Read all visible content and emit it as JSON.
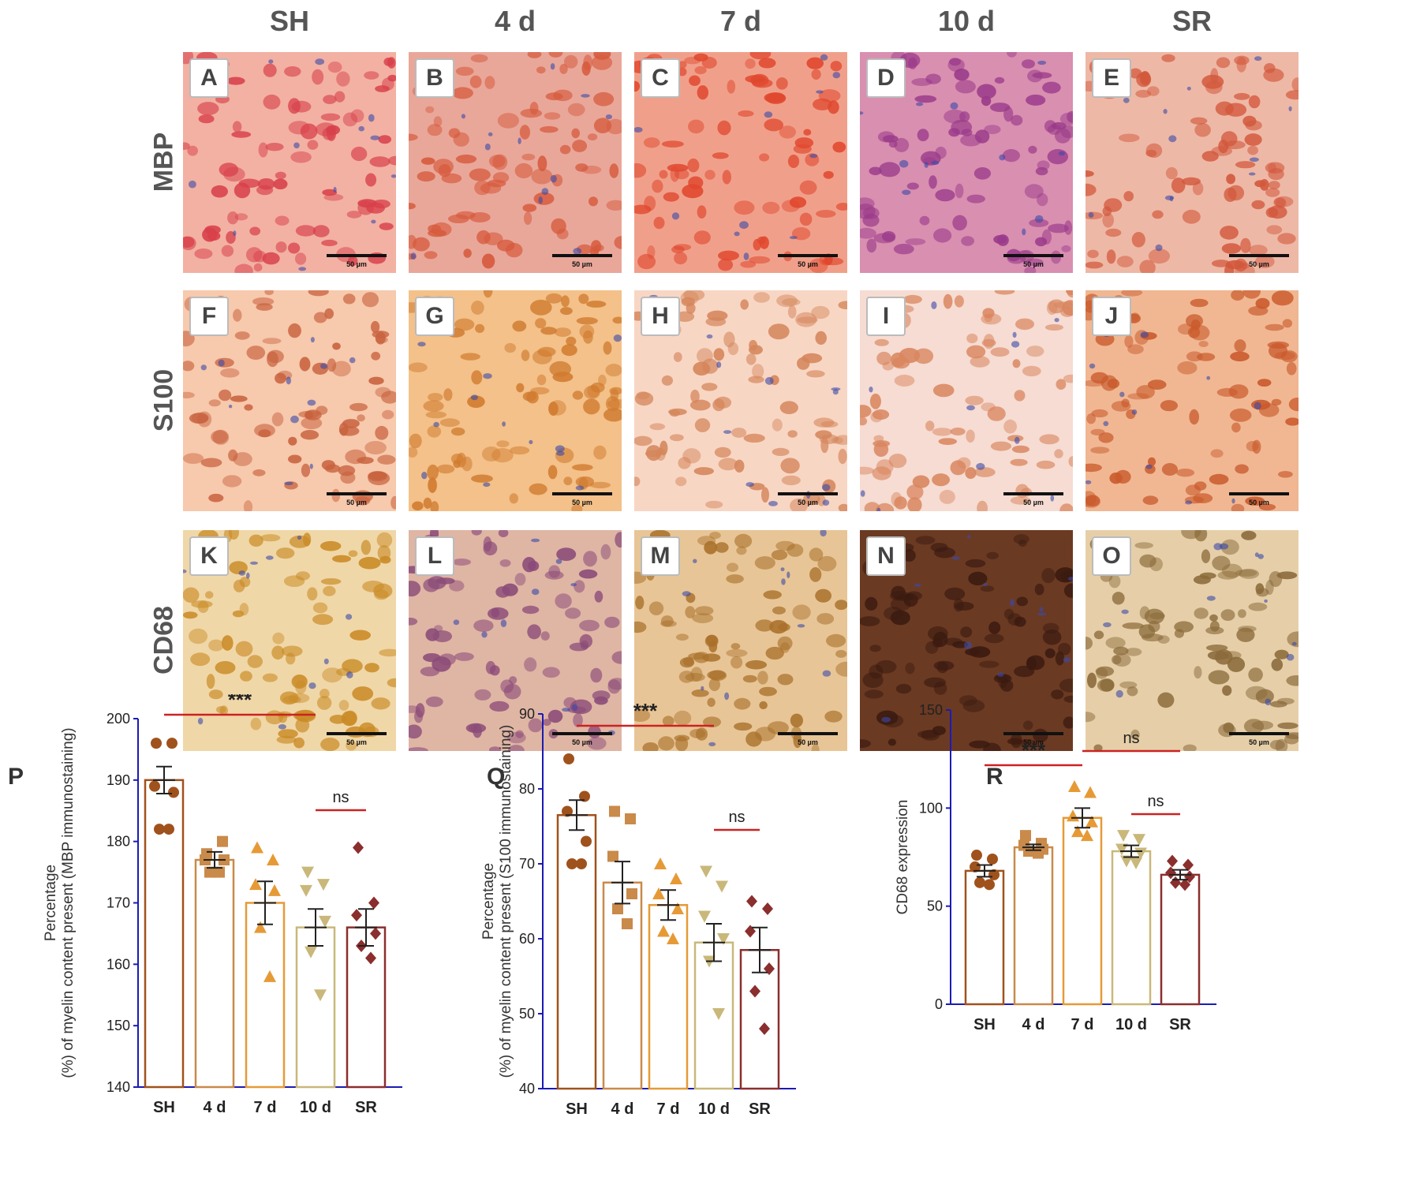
{
  "columns": [
    "SH",
    "4 d",
    "7 d",
    "10 d",
    "SR"
  ],
  "rows": [
    {
      "label": "MBP",
      "panels": [
        "A",
        "B",
        "C",
        "D",
        "E"
      ],
      "scale": [
        "50 µm",
        "50 µm",
        "50 µm",
        "50 µm",
        "50 µm"
      ],
      "colors": [
        "#f2b1a3",
        "#e9a79a",
        "#f0a08a",
        "#d98fb0",
        "#eeb8a6"
      ],
      "spot": [
        "#d8404a",
        "#d65a3c",
        "#e0472e",
        "#9a3a8a",
        "#d2583c"
      ]
    },
    {
      "label": "S100",
      "panels": [
        "F",
        "G",
        "H",
        "I",
        "J"
      ],
      "scale": [
        "50 µm",
        "50 µm",
        "50 µm",
        "50 µm",
        "50 µm"
      ],
      "colors": [
        "#f7c9ad",
        "#f3c189",
        "#f8d6c4",
        "#f6dcd2",
        "#f0b792"
      ],
      "spot": [
        "#c8623e",
        "#d07a2e",
        "#d4855a",
        "#d9865f",
        "#c95a2c"
      ]
    },
    {
      "label": "CD68",
      "panels": [
        "K",
        "L",
        "M",
        "N",
        "O"
      ],
      "scale": [
        "50 µm",
        "50 µm",
        "50 µm",
        "50 µm",
        "50 µm"
      ],
      "colors": [
        "#f0d7a8",
        "#dfb5a4",
        "#e8c596",
        "#6b3a22",
        "#e6cfa8"
      ],
      "spot": [
        "#c98a24",
        "#8b4b78",
        "#a8702a",
        "#3a1a10",
        "#8a6a3a"
      ]
    }
  ],
  "chart_data": [
    {
      "panel": "P",
      "type": "bar",
      "categories": [
        "SH",
        "4 d",
        "7 d",
        "10 d",
        "SR"
      ],
      "values": [
        190,
        177,
        170,
        166,
        166
      ],
      "errors": [
        2.2,
        1.3,
        3.5,
        3.0,
        3.0
      ],
      "points": [
        [
          196,
          196,
          189,
          188,
          182,
          182
        ],
        [
          178,
          180,
          177,
          177,
          175,
          175
        ],
        [
          179,
          177,
          173,
          172,
          166,
          158
        ],
        [
          175,
          173,
          172,
          167,
          162,
          155
        ],
        [
          179,
          170,
          168,
          165,
          163,
          161
        ]
      ],
      "ylabel": "Percentage (%) of myelin content present (MBP immunostaining)",
      "ylim": [
        140,
        200
      ],
      "yticks": [
        140,
        150,
        160,
        170,
        180,
        190,
        200
      ],
      "annotations": [
        {
          "text": "***",
          "from": 0,
          "to": 3
        },
        {
          "text": "ns",
          "from": 3,
          "to": 4
        }
      ]
    },
    {
      "panel": "Q",
      "type": "bar",
      "categories": [
        "SH",
        "4 d",
        "7 d",
        "10 d",
        "SR"
      ],
      "values": [
        76.5,
        67.5,
        64.5,
        59.5,
        58.5
      ],
      "errors": [
        2.0,
        2.8,
        2.0,
        2.5,
        3.0
      ],
      "points": [
        [
          84,
          79,
          77,
          73,
          70,
          70
        ],
        [
          77,
          76,
          71,
          66,
          64,
          62
        ],
        [
          70,
          68,
          66,
          64,
          61,
          60
        ],
        [
          69,
          67,
          63,
          60,
          57,
          50
        ],
        [
          65,
          64,
          61,
          56,
          53,
          48
        ]
      ],
      "ylabel": "Percentage (%) of myelin content present (S100 immunostaining)",
      "ylim": [
        40,
        90
      ],
      "yticks": [
        40,
        50,
        60,
        70,
        80,
        90
      ],
      "annotations": [
        {
          "text": "***",
          "from": 0,
          "to": 3
        },
        {
          "text": "ns",
          "from": 3,
          "to": 4
        }
      ]
    },
    {
      "panel": "R",
      "type": "bar",
      "categories": [
        "SH",
        "4 d",
        "7 d",
        "10 d",
        "SR"
      ],
      "values": [
        68,
        80,
        95,
        78,
        66
      ],
      "errors": [
        3.0,
        1.5,
        5.0,
        3.0,
        2.5
      ],
      "points": [
        [
          76,
          74,
          70,
          66,
          62,
          61
        ],
        [
          86,
          82,
          81,
          79,
          78,
          77
        ],
        [
          111,
          108,
          96,
          93,
          88,
          86
        ],
        [
          86,
          84,
          79,
          77,
          73,
          72
        ],
        [
          73,
          71,
          67,
          65,
          62,
          61
        ]
      ],
      "ylabel": "CD68 expression",
      "ylim": [
        0,
        150
      ],
      "yticks": [
        0,
        50,
        100,
        150
      ],
      "annotations": [
        {
          "text": "***",
          "from": 0,
          "to": 2
        },
        {
          "text": "ns",
          "from": 2,
          "to": 4
        },
        {
          "text": "ns",
          "from": 3,
          "to": 4
        }
      ]
    }
  ],
  "colors": {
    "groups": [
      "#a0521c",
      "#c98a4a",
      "#e69a36",
      "#c9b87a",
      "#8b2e2e"
    ],
    "axis": "#1b1bb3",
    "bracket": "#cc2222"
  }
}
